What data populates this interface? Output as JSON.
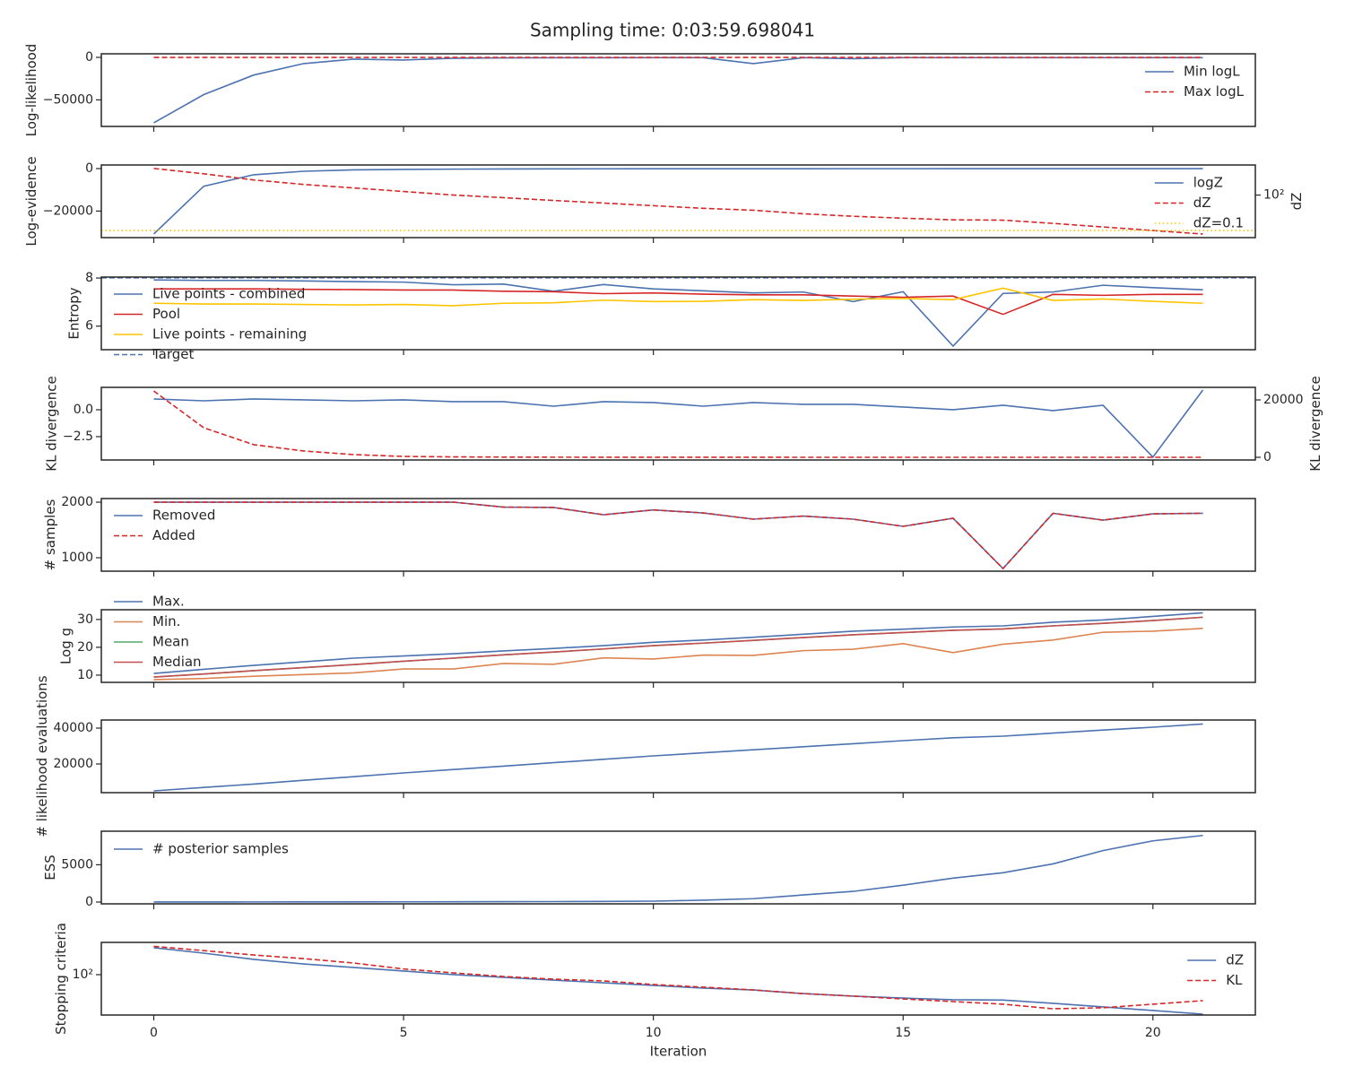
{
  "title": "Sampling time: 0:03:59.698041",
  "chart_data": [
    {
      "type": "line",
      "ylabel": "Log-likelihood",
      "x": [
        0,
        1,
        2,
        3,
        4,
        5,
        6,
        7,
        8,
        9,
        10,
        11,
        12,
        13,
        14,
        15,
        16,
        17,
        18,
        19,
        20,
        21
      ],
      "xlim": [
        -1.05,
        22.05
      ],
      "xticks": [
        0,
        5,
        10,
        15,
        20
      ],
      "ylim": [
        -81250,
        4200
      ],
      "yticks": [
        {
          "value": -50000,
          "label": "−50000"
        },
        0
      ],
      "legend": "upper right",
      "series": [
        {
          "name": "Min logL",
          "color": "#4c72b0",
          "style": "solid",
          "values": [
            -77000,
            -43800,
            -20800,
            -7300,
            -2100,
            -3100,
            -1000,
            -600,
            -500,
            -500,
            -400,
            -400,
            -7300,
            -400,
            -1500,
            -300,
            -300,
            -300,
            -300,
            -300,
            -300,
            -300
          ]
        },
        {
          "name": "Max logL",
          "color": "#d62728",
          "style": "dashed",
          "values": [
            -50,
            -50,
            -50,
            -50,
            -50,
            -50,
            -50,
            -50,
            -50,
            -50,
            -50,
            -50,
            -50,
            -50,
            -50,
            -50,
            -50,
            -50,
            -50,
            -50,
            -50,
            -50
          ]
        }
      ]
    },
    {
      "type": "line",
      "ylabel": "Log-evidence",
      "y2label": "dZ",
      "x": [
        0,
        1,
        2,
        3,
        4,
        5,
        6,
        7,
        8,
        9,
        10,
        11,
        12,
        13,
        14,
        15,
        16,
        17,
        18,
        19,
        20,
        21
      ],
      "xlim": [
        -1.05,
        22.05
      ],
      "xticks": [
        0,
        5,
        10,
        15,
        20
      ],
      "ylim": [
        -32500,
        1700
      ],
      "yticks": [
        {
          "value": -20000,
          "label": "−20000"
        },
        0
      ],
      "y2log": true,
      "y2lim": [
        0.025,
        35000
      ],
      "y2ticks": [
        {
          "value": 100,
          "label": "10²"
        }
      ],
      "legend": "center right",
      "series": [
        {
          "name": "logZ",
          "color": "#4c72b0",
          "style": "solid",
          "values": [
            -30800,
            -8300,
            -2900,
            -1250,
            -600,
            -400,
            -250,
            -180,
            -130,
            -100,
            -80,
            -70,
            -60,
            -50,
            -45,
            -40,
            -35,
            -30,
            -30,
            -30,
            -30,
            -30
          ]
        },
        {
          "name": "dZ",
          "color": "#d62728",
          "style": "dashed",
          "axis": "y2",
          "values": [
            17800,
            6300,
            1900,
            790,
            400,
            200,
            100,
            60,
            35,
            21,
            12.6,
            7.5,
            5.2,
            2.6,
            1.6,
            1.1,
            0.8,
            0.75,
            0.4,
            0.2,
            0.1,
            0.05
          ]
        },
        {
          "name": "dZ=0.1",
          "color": "#ffc400",
          "style": "dotted",
          "axis": "y2",
          "hline": 0.1
        }
      ]
    },
    {
      "type": "line",
      "ylabel": "Entropy",
      "x": [
        0,
        1,
        2,
        3,
        4,
        5,
        6,
        7,
        8,
        9,
        10,
        11,
        12,
        13,
        14,
        15,
        16,
        17,
        18,
        19,
        20,
        21
      ],
      "xlim": [
        -1.05,
        22.05
      ],
      "xticks": [
        0,
        5,
        10,
        15,
        20
      ],
      "ylim": [
        5.02,
        8.04
      ],
      "yticks": [
        6,
        8
      ],
      "legend": "center left",
      "series": [
        {
          "name": "Live points - combined",
          "color": "#4c72b0",
          "style": "solid",
          "values": [
            7.92,
            7.9,
            7.9,
            7.88,
            7.85,
            7.83,
            7.72,
            7.75,
            7.45,
            7.73,
            7.55,
            7.47,
            7.38,
            7.42,
            7.02,
            7.43,
            5.17,
            7.36,
            7.42,
            7.7,
            7.6,
            7.51
          ]
        },
        {
          "name": "Pool",
          "color": "#d62728",
          "style": "solid",
          "values": [
            7.55,
            7.55,
            7.55,
            7.53,
            7.52,
            7.5,
            7.5,
            7.45,
            7.43,
            7.35,
            7.38,
            7.33,
            7.3,
            7.3,
            7.25,
            7.2,
            7.25,
            6.49,
            7.32,
            7.28,
            7.32,
            7.32
          ]
        },
        {
          "name": "Live points - remaining",
          "color": "#ffc400",
          "style": "solid",
          "values": [
            6.95,
            6.92,
            6.92,
            6.9,
            6.88,
            6.9,
            6.85,
            6.95,
            6.97,
            7.08,
            7.02,
            7.03,
            7.1,
            7.07,
            7.12,
            7.15,
            7.1,
            7.58,
            7.07,
            7.13,
            7.03,
            6.95
          ]
        },
        {
          "name": "Target",
          "color": "#4c72b0",
          "style": "dashed",
          "hline": 8.01
        }
      ]
    },
    {
      "type": "line",
      "ylabel": "KL divergence",
      "y2label": "KL divergence",
      "x": [
        0,
        1,
        2,
        3,
        4,
        5,
        6,
        7,
        8,
        9,
        10,
        11,
        12,
        13,
        14,
        15,
        16,
        17,
        18,
        19,
        20,
        21
      ],
      "xlim": [
        -1.05,
        22.05
      ],
      "xticks": [
        0,
        5,
        10,
        15,
        20
      ],
      "ylim": [
        -4.67,
        2.08
      ],
      "yticks": [
        {
          "value": -2.5,
          "label": "−2.5"
        },
        {
          "value": 0,
          "label": "0.0"
        }
      ],
      "y2lim": [
        -937,
        24375
      ],
      "y2ticks": [
        0,
        20000
      ],
      "series": [
        {
          "color": "#4c72b0",
          "style": "solid",
          "values": [
            1.0,
            0.83,
            1.0,
            0.92,
            0.83,
            0.92,
            0.75,
            0.75,
            0.33,
            0.75,
            0.67,
            0.33,
            0.67,
            0.5,
            0.5,
            0.25,
            0.0,
            0.42,
            -0.08,
            0.42,
            -4.4,
            1.83
          ]
        },
        {
          "color": "#d62728",
          "style": "dashed",
          "axis": "y2",
          "values": [
            23100,
            10300,
            4400,
            2200,
            940,
            300,
            140,
            70,
            42,
            30,
            15,
            9,
            5.3,
            2.6,
            1.6,
            0.93,
            0.56,
            0.34,
            0.14,
            0.17,
            0.34,
            0.67
          ]
        }
      ]
    },
    {
      "type": "line",
      "ylabel": "# samples",
      "x": [
        0,
        1,
        2,
        3,
        4,
        5,
        6,
        7,
        8,
        9,
        10,
        11,
        12,
        13,
        14,
        15,
        16,
        17,
        18,
        19,
        20,
        21
      ],
      "xlim": [
        -1.05,
        22.05
      ],
      "xticks": [
        0,
        5,
        10,
        15,
        20
      ],
      "ylim": [
        758,
        2065
      ],
      "yticks": [
        1000,
        2000
      ],
      "legend": "upper left",
      "series": [
        {
          "name": "Removed",
          "color": "#4c72b0",
          "style": "solid",
          "values": [
            2000,
            2000,
            2000,
            2000,
            2000,
            2000,
            2000,
            1911,
            1905,
            1774,
            1860,
            1806,
            1694,
            1750,
            1694,
            1565,
            1710,
            806,
            1800,
            1677,
            1790,
            1800
          ]
        },
        {
          "name": "Added",
          "color": "#d62728",
          "style": "dashed",
          "values": [
            2000,
            2000,
            2000,
            2000,
            2000,
            2000,
            2000,
            1911,
            1905,
            1774,
            1860,
            1806,
            1694,
            1750,
            1694,
            1565,
            1710,
            806,
            1800,
            1677,
            1790,
            1800
          ]
        }
      ]
    },
    {
      "type": "line",
      "ylabel": "Log g",
      "x": [
        0,
        1,
        2,
        3,
        4,
        5,
        6,
        7,
        8,
        9,
        10,
        11,
        12,
        13,
        14,
        15,
        16,
        17,
        18,
        19,
        20,
        21
      ],
      "xlim": [
        -1.05,
        22.05
      ],
      "xticks": [
        0,
        5,
        10,
        15,
        20
      ],
      "ylim": [
        7.4,
        33.5
      ],
      "yticks": [
        10,
        20,
        30
      ],
      "legend": "center left",
      "series": [
        {
          "name": "Max.",
          "color": "#4c72b0",
          "style": "solid",
          "values": [
            10.6,
            12.1,
            13.5,
            14.8,
            16.1,
            16.9,
            17.7,
            18.7,
            19.6,
            20.6,
            21.8,
            22.6,
            23.6,
            24.7,
            25.8,
            26.5,
            27.3,
            27.7,
            29.0,
            29.8,
            31.1,
            32.4
          ]
        },
        {
          "name": "Min.",
          "color": "#dd8452",
          "style": "solid",
          "values": [
            8.4,
            8.8,
            9.6,
            10.2,
            10.8,
            12.2,
            12.2,
            14.2,
            13.9,
            16.2,
            15.8,
            17.2,
            17.1,
            18.8,
            19.3,
            21.3,
            18.1,
            21.1,
            22.6,
            25.4,
            25.8,
            26.8
          ]
        },
        {
          "name": "Mean",
          "color": "#55a868",
          "style": "solid",
          "values": [
            9.3,
            10.4,
            11.6,
            12.7,
            13.8,
            15.0,
            16.1,
            17.3,
            18.3,
            19.4,
            20.6,
            21.5,
            22.5,
            23.5,
            24.5,
            25.3,
            26.1,
            26.6,
            27.7,
            28.6,
            29.6,
            30.8
          ]
        },
        {
          "name": "Median",
          "color": "#c44e52",
          "style": "solid",
          "values": [
            9.3,
            10.4,
            11.6,
            12.7,
            13.8,
            15.0,
            16.1,
            17.3,
            18.3,
            19.4,
            20.6,
            21.5,
            22.5,
            23.5,
            24.5,
            25.3,
            26.1,
            26.6,
            27.7,
            28.6,
            29.6,
            30.8
          ]
        }
      ]
    },
    {
      "type": "line",
      "ylabel": "# likelihood evaluations",
      "x": [
        0,
        1,
        2,
        3,
        4,
        5,
        6,
        7,
        8,
        9,
        10,
        11,
        12,
        13,
        14,
        15,
        16,
        17,
        18,
        19,
        20,
        21
      ],
      "xlim": [
        -1.05,
        22.05
      ],
      "xticks": [
        0,
        5,
        10,
        15,
        20
      ],
      "ylim": [
        4000,
        44500
      ],
      "yticks": [
        20000,
        40000
      ],
      "series": [
        {
          "color": "#4c72b0",
          "style": "solid",
          "values": [
            5000,
            6900,
            8800,
            10900,
            12900,
            15000,
            16900,
            18800,
            20700,
            22600,
            24500,
            26200,
            27900,
            29600,
            31300,
            33000,
            34600,
            35500,
            37200,
            38900,
            40500,
            42300
          ]
        }
      ]
    },
    {
      "type": "line",
      "ylabel": "ESS",
      "x": [
        0,
        1,
        2,
        3,
        4,
        5,
        6,
        7,
        8,
        9,
        10,
        11,
        12,
        13,
        14,
        15,
        16,
        17,
        18,
        19,
        20,
        21
      ],
      "xlim": [
        -1.05,
        22.05
      ],
      "xticks": [
        0,
        5,
        10,
        15,
        20
      ],
      "ylim": [
        -240,
        9500
      ],
      "yticks": [
        0,
        5000
      ],
      "legend": "upper left",
      "series": [
        {
          "name": "# posterior samples",
          "color": "#4c72b0",
          "style": "solid",
          "values": [
            10,
            12,
            15,
            20,
            25,
            30,
            40,
            50,
            60,
            80,
            120,
            250,
            450,
            950,
            1430,
            2260,
            3210,
            3930,
            5120,
            6900,
            8210,
            8930
          ]
        }
      ]
    },
    {
      "type": "line",
      "ylabel": "Stopping criteria",
      "xlabel": "Iteration",
      "x": [
        0,
        1,
        2,
        3,
        4,
        5,
        6,
        7,
        8,
        9,
        10,
        11,
        12,
        13,
        14,
        15,
        16,
        17,
        18,
        19,
        20,
        21
      ],
      "xlim": [
        -1.05,
        22.05
      ],
      "xticks": [
        0,
        5,
        10,
        15,
        20
      ],
      "ylog": true,
      "ylim": [
        0.042,
        50000
      ],
      "yticks": [
        {
          "value": 100,
          "label": "10²"
        }
      ],
      "legend": "center right",
      "series": [
        {
          "name": "dZ",
          "color": "#4c72b0",
          "style": "solid",
          "values": [
            17800,
            6300,
            1900,
            790,
            400,
            200,
            100,
            60,
            35,
            21,
            12.6,
            7.5,
            5.2,
            2.6,
            1.6,
            1.1,
            0.8,
            0.75,
            0.4,
            0.2,
            0.1,
            0.05
          ]
        },
        {
          "name": "KL",
          "color": "#d62728",
          "style": "dashed",
          "values": [
            23100,
            10300,
            4400,
            2200,
            940,
            300,
            140,
            70,
            42,
            30,
            15,
            9,
            5.3,
            2.6,
            1.6,
            0.93,
            0.56,
            0.34,
            0.14,
            0.17,
            0.34,
            0.67
          ]
        }
      ]
    }
  ]
}
